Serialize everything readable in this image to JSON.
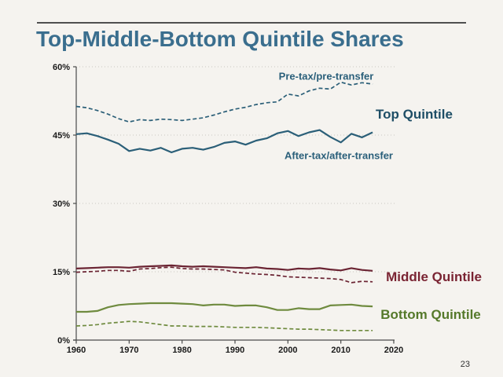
{
  "slide": {
    "title": "Top-Middle-Bottom Quintile Shares",
    "page_number": "23"
  },
  "chart_data": {
    "type": "line",
    "xlim": [
      1960,
      2020
    ],
    "ylim": [
      0,
      60
    ],
    "grid": "horizontal-dotted",
    "x_ticks": [
      1960,
      1970,
      1980,
      1990,
      2000,
      2010,
      2020
    ],
    "x_tick_labels": [
      "1960",
      "1970",
      "1980",
      "1990",
      "2000",
      "2010",
      "2020"
    ],
    "y_ticks": [
      0,
      15,
      30,
      45,
      60
    ],
    "y_tick_labels": [
      "0%",
      "15%",
      "30%",
      "45%",
      "60%"
    ],
    "x": [
      1960,
      1962,
      1964,
      1966,
      1968,
      1970,
      1972,
      1974,
      1976,
      1978,
      1980,
      1982,
      1984,
      1986,
      1988,
      1990,
      1992,
      1994,
      1996,
      1998,
      2000,
      2002,
      2004,
      2006,
      2008,
      2010,
      2012,
      2014,
      2016
    ],
    "series": [
      {
        "name": "top-quintile-pretax",
        "legend": "Top Quintile — Pre-tax/pre-transfer",
        "color": "#2b5f78",
        "dash": true,
        "values": [
          51.3,
          51.0,
          50.4,
          49.6,
          48.6,
          47.9,
          48.4,
          48.2,
          48.5,
          48.4,
          48.2,
          48.5,
          48.8,
          49.4,
          50.1,
          50.7,
          51.1,
          51.7,
          52.1,
          52.3,
          54.0,
          53.6,
          54.7,
          55.3,
          55.1,
          56.6,
          56.0,
          56.5,
          56.2
        ]
      },
      {
        "name": "top-quintile-aftertax",
        "legend": "Top Quintile — After-tax/after-transfer",
        "color": "#2b5f78",
        "dash": false,
        "values": [
          45.2,
          45.4,
          44.8,
          44.0,
          43.1,
          41.5,
          42.0,
          41.6,
          42.2,
          41.2,
          42.0,
          42.2,
          41.8,
          42.4,
          43.3,
          43.6,
          42.9,
          43.8,
          44.3,
          45.4,
          45.9,
          44.8,
          45.6,
          46.1,
          44.6,
          43.4,
          45.3,
          44.5,
          45.6
        ]
      },
      {
        "name": "middle-quintile-pretax",
        "legend": "Middle Quintile — Pre-tax/pre-transfer",
        "color": "#6b2433",
        "dash": true,
        "values": [
          14.9,
          15.0,
          15.1,
          15.3,
          15.3,
          15.1,
          15.6,
          15.7,
          15.9,
          16.0,
          15.7,
          15.6,
          15.6,
          15.5,
          15.4,
          14.9,
          14.7,
          14.5,
          14.4,
          14.2,
          13.9,
          13.8,
          13.7,
          13.6,
          13.5,
          13.3,
          12.6,
          12.9,
          12.8
        ]
      },
      {
        "name": "middle-quintile-aftertax",
        "legend": "Middle Quintile — After-tax/after-transfer",
        "color": "#6b2433",
        "dash": false,
        "values": [
          15.7,
          15.8,
          15.9,
          16.0,
          16.0,
          15.9,
          16.1,
          16.2,
          16.3,
          16.4,
          16.2,
          16.1,
          16.2,
          16.1,
          16.0,
          15.9,
          15.8,
          16.0,
          15.7,
          15.6,
          15.4,
          15.7,
          15.6,
          15.8,
          15.5,
          15.3,
          15.8,
          15.4,
          15.2
        ]
      },
      {
        "name": "bottom-quintile-pretax",
        "legend": "Bottom Quintile — Pre-tax/pre-transfer",
        "color": "#6f8b3f",
        "dash": true,
        "values": [
          3.1,
          3.2,
          3.4,
          3.7,
          3.9,
          4.1,
          4.0,
          3.7,
          3.4,
          3.1,
          3.1,
          3.0,
          3.0,
          3.0,
          2.9,
          2.8,
          2.8,
          2.8,
          2.7,
          2.6,
          2.5,
          2.4,
          2.4,
          2.3,
          2.2,
          2.1,
          2.1,
          2.1,
          2.1
        ]
      },
      {
        "name": "bottom-quintile-aftertax",
        "legend": "Bottom Quintile — After-tax/after-transfer",
        "color": "#6f8b3f",
        "dash": false,
        "values": [
          6.2,
          6.2,
          6.4,
          7.2,
          7.7,
          7.9,
          8.0,
          8.1,
          8.1,
          8.1,
          8.0,
          7.9,
          7.6,
          7.8,
          7.8,
          7.5,
          7.6,
          7.6,
          7.2,
          6.6,
          6.6,
          7.0,
          6.8,
          6.8,
          7.6,
          7.7,
          7.8,
          7.5,
          7.4
        ]
      }
    ],
    "labels": {
      "pretax": {
        "text": "Pre-tax/pre-transfer",
        "color": "#2a5f7a"
      },
      "aftertax": {
        "text": "After-tax/after-transfer",
        "color": "#2a5f7a"
      },
      "top": {
        "text": "Top Quintile",
        "color": "#1e4e66"
      },
      "middle": {
        "text": "Middle Quintile",
        "color": "#7a2433"
      },
      "bottom": {
        "text": "Bottom Quintile",
        "color": "#55792a"
      }
    },
    "axis_color": "#4a4a4a",
    "grid_color": "#c9c7c2"
  }
}
